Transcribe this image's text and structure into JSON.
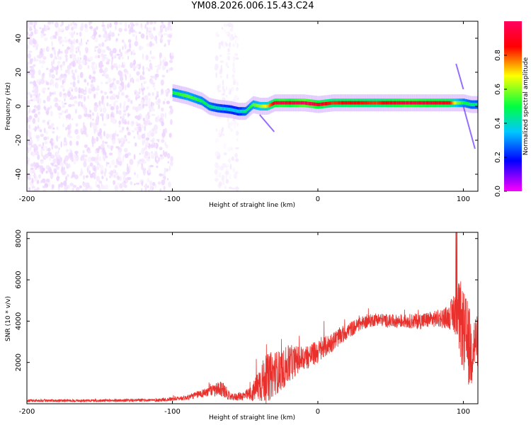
{
  "title": "YM08.2026.006.15.43.C24",
  "chart_data": [
    {
      "type": "heatmap",
      "name": "spectrogram",
      "xlabel": "Height of straight line (km)",
      "ylabel": "Frequency (Hz)",
      "xlim": [
        -200,
        110
      ],
      "ylim": [
        -50,
        50
      ],
      "xticks": [
        -200,
        -100,
        0,
        100
      ],
      "yticks": [
        -40,
        -20,
        0,
        20,
        40
      ],
      "colorbar": {
        "label": "Normalized spectral amplitude",
        "range": [
          0,
          1
        ],
        "ticks": [
          "0.0",
          "0.2",
          "0.4",
          "0.6",
          "0.8"
        ],
        "tick_values": [
          0,
          0.2,
          0.4,
          0.6,
          0.8
        ],
        "colors": [
          "#ff00ff",
          "#0000ff",
          "#00c8ff",
          "#00ff40",
          "#ffff00",
          "#ff0000",
          "#ff0060"
        ]
      },
      "ridge": {
        "x": [
          -100,
          -90,
          -80,
          -75,
          -70,
          -60,
          -55,
          -50,
          -45,
          -40,
          -35,
          -30,
          -25,
          -20,
          -10,
          0,
          10,
          20,
          40,
          60,
          80,
          90,
          95,
          100,
          105,
          110
        ],
        "y": [
          8,
          6,
          3,
          0,
          -1,
          -2,
          -3,
          -3,
          1,
          0,
          0,
          2,
          2,
          2,
          2,
          1,
          2,
          2,
          2,
          2,
          2,
          2,
          2,
          2,
          1,
          1
        ],
        "amplitude": [
          0.5,
          0.55,
          0.5,
          0.45,
          0.4,
          0.35,
          0.35,
          0.45,
          0.55,
          0.6,
          0.7,
          0.9,
          0.95,
          0.9,
          1.0,
          0.9,
          0.8,
          0.85,
          0.8,
          0.95,
          0.9,
          0.85,
          0.6,
          0.5,
          0.45,
          0.45
        ]
      },
      "noise_regions": [
        {
          "x_range": [
            -200,
            -100
          ],
          "y_range": [
            -50,
            50
          ],
          "amplitude": 0.2
        },
        {
          "x_range": [
            -70,
            -55
          ],
          "y_range": [
            -50,
            50
          ],
          "amplitude": 0.1
        }
      ]
    },
    {
      "type": "line",
      "name": "snr",
      "xlabel": "Height of straight line (km)",
      "ylabel": "SNR (10 * v/v)",
      "xlim": [
        -200,
        110
      ],
      "ylim": [
        0,
        8300
      ],
      "xticks": [
        -200,
        -100,
        0,
        100
      ],
      "yticks": [
        2000,
        4000,
        6000,
        8000
      ],
      "color": "#e8302c",
      "envelope": {
        "x": [
          -200,
          -150,
          -110,
          -100,
          -90,
          -80,
          -75,
          -70,
          -65,
          -60,
          -50,
          -45,
          -40,
          -35,
          -30,
          -25,
          -20,
          -15,
          -10,
          0,
          10,
          20,
          30,
          40,
          50,
          60,
          70,
          80,
          90,
          95,
          98,
          100,
          103,
          105,
          108,
          110
        ],
        "y": [
          150,
          150,
          180,
          220,
          300,
          500,
          600,
          650,
          700,
          300,
          400,
          500,
          1000,
          1200,
          1500,
          1600,
          1900,
          2100,
          2200,
          2500,
          3000,
          3500,
          3900,
          4100,
          4000,
          4000,
          4000,
          4100,
          4200,
          4500,
          4000,
          3500,
          3000,
          2500,
          3000,
          3000
        ],
        "spread": [
          80,
          80,
          100,
          120,
          150,
          250,
          300,
          450,
          500,
          200,
          300,
          500,
          1200,
          1500,
          1400,
          1200,
          1200,
          900,
          800,
          700,
          600,
          500,
          400,
          400,
          400,
          400,
          500,
          500,
          700,
          1500,
          2500,
          2500,
          2500,
          2500,
          1800,
          1500
        ]
      }
    }
  ]
}
